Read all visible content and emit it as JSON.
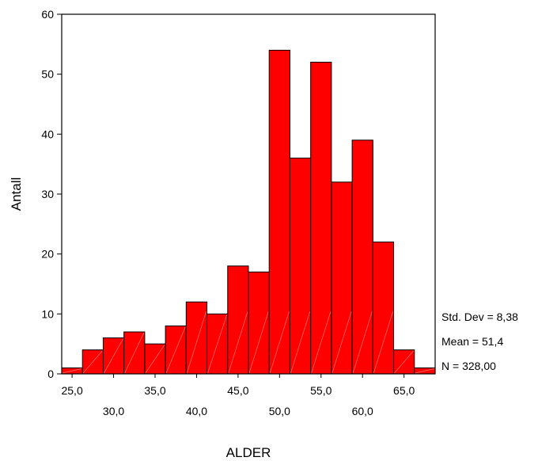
{
  "chart_data": {
    "type": "bar",
    "subtype": "histogram",
    "xlabel": "ALDER",
    "ylabel": "Antall",
    "ylim": [
      0,
      60
    ],
    "yticks": [
      0,
      10,
      20,
      30,
      40,
      50,
      60
    ],
    "bin_width": 2.5,
    "x_range": [
      23.75,
      68.75
    ],
    "x_ticks_upper": [
      {
        "value": 25.0,
        "label": "25,0"
      },
      {
        "value": 35.0,
        "label": "35,0"
      },
      {
        "value": 45.0,
        "label": "45,0"
      },
      {
        "value": 55.0,
        "label": "55,0"
      },
      {
        "value": 65.0,
        "label": "65,0"
      }
    ],
    "x_ticks_lower": [
      {
        "value": 30.0,
        "label": "30,0"
      },
      {
        "value": 40.0,
        "label": "40,0"
      },
      {
        "value": 50.0,
        "label": "50,0"
      },
      {
        "value": 60.0,
        "label": "60,0"
      }
    ],
    "bin_centers": [
      25.0,
      27.5,
      30.0,
      32.5,
      35.0,
      37.5,
      40.0,
      42.5,
      45.0,
      47.5,
      50.0,
      52.5,
      55.0,
      57.5,
      60.0,
      62.5,
      65.0,
      67.5
    ],
    "values": [
      1,
      4,
      6,
      7,
      5,
      8,
      12,
      10,
      18,
      17,
      54,
      36,
      52,
      32,
      39,
      22,
      4,
      1
    ],
    "bar_color": "#ff0000",
    "bar_stroke": "#000000",
    "grid": false,
    "stats": {
      "std_dev": "Std. Dev = 8,38",
      "mean": "Mean = 51,4",
      "n": "N = 328,00"
    }
  }
}
